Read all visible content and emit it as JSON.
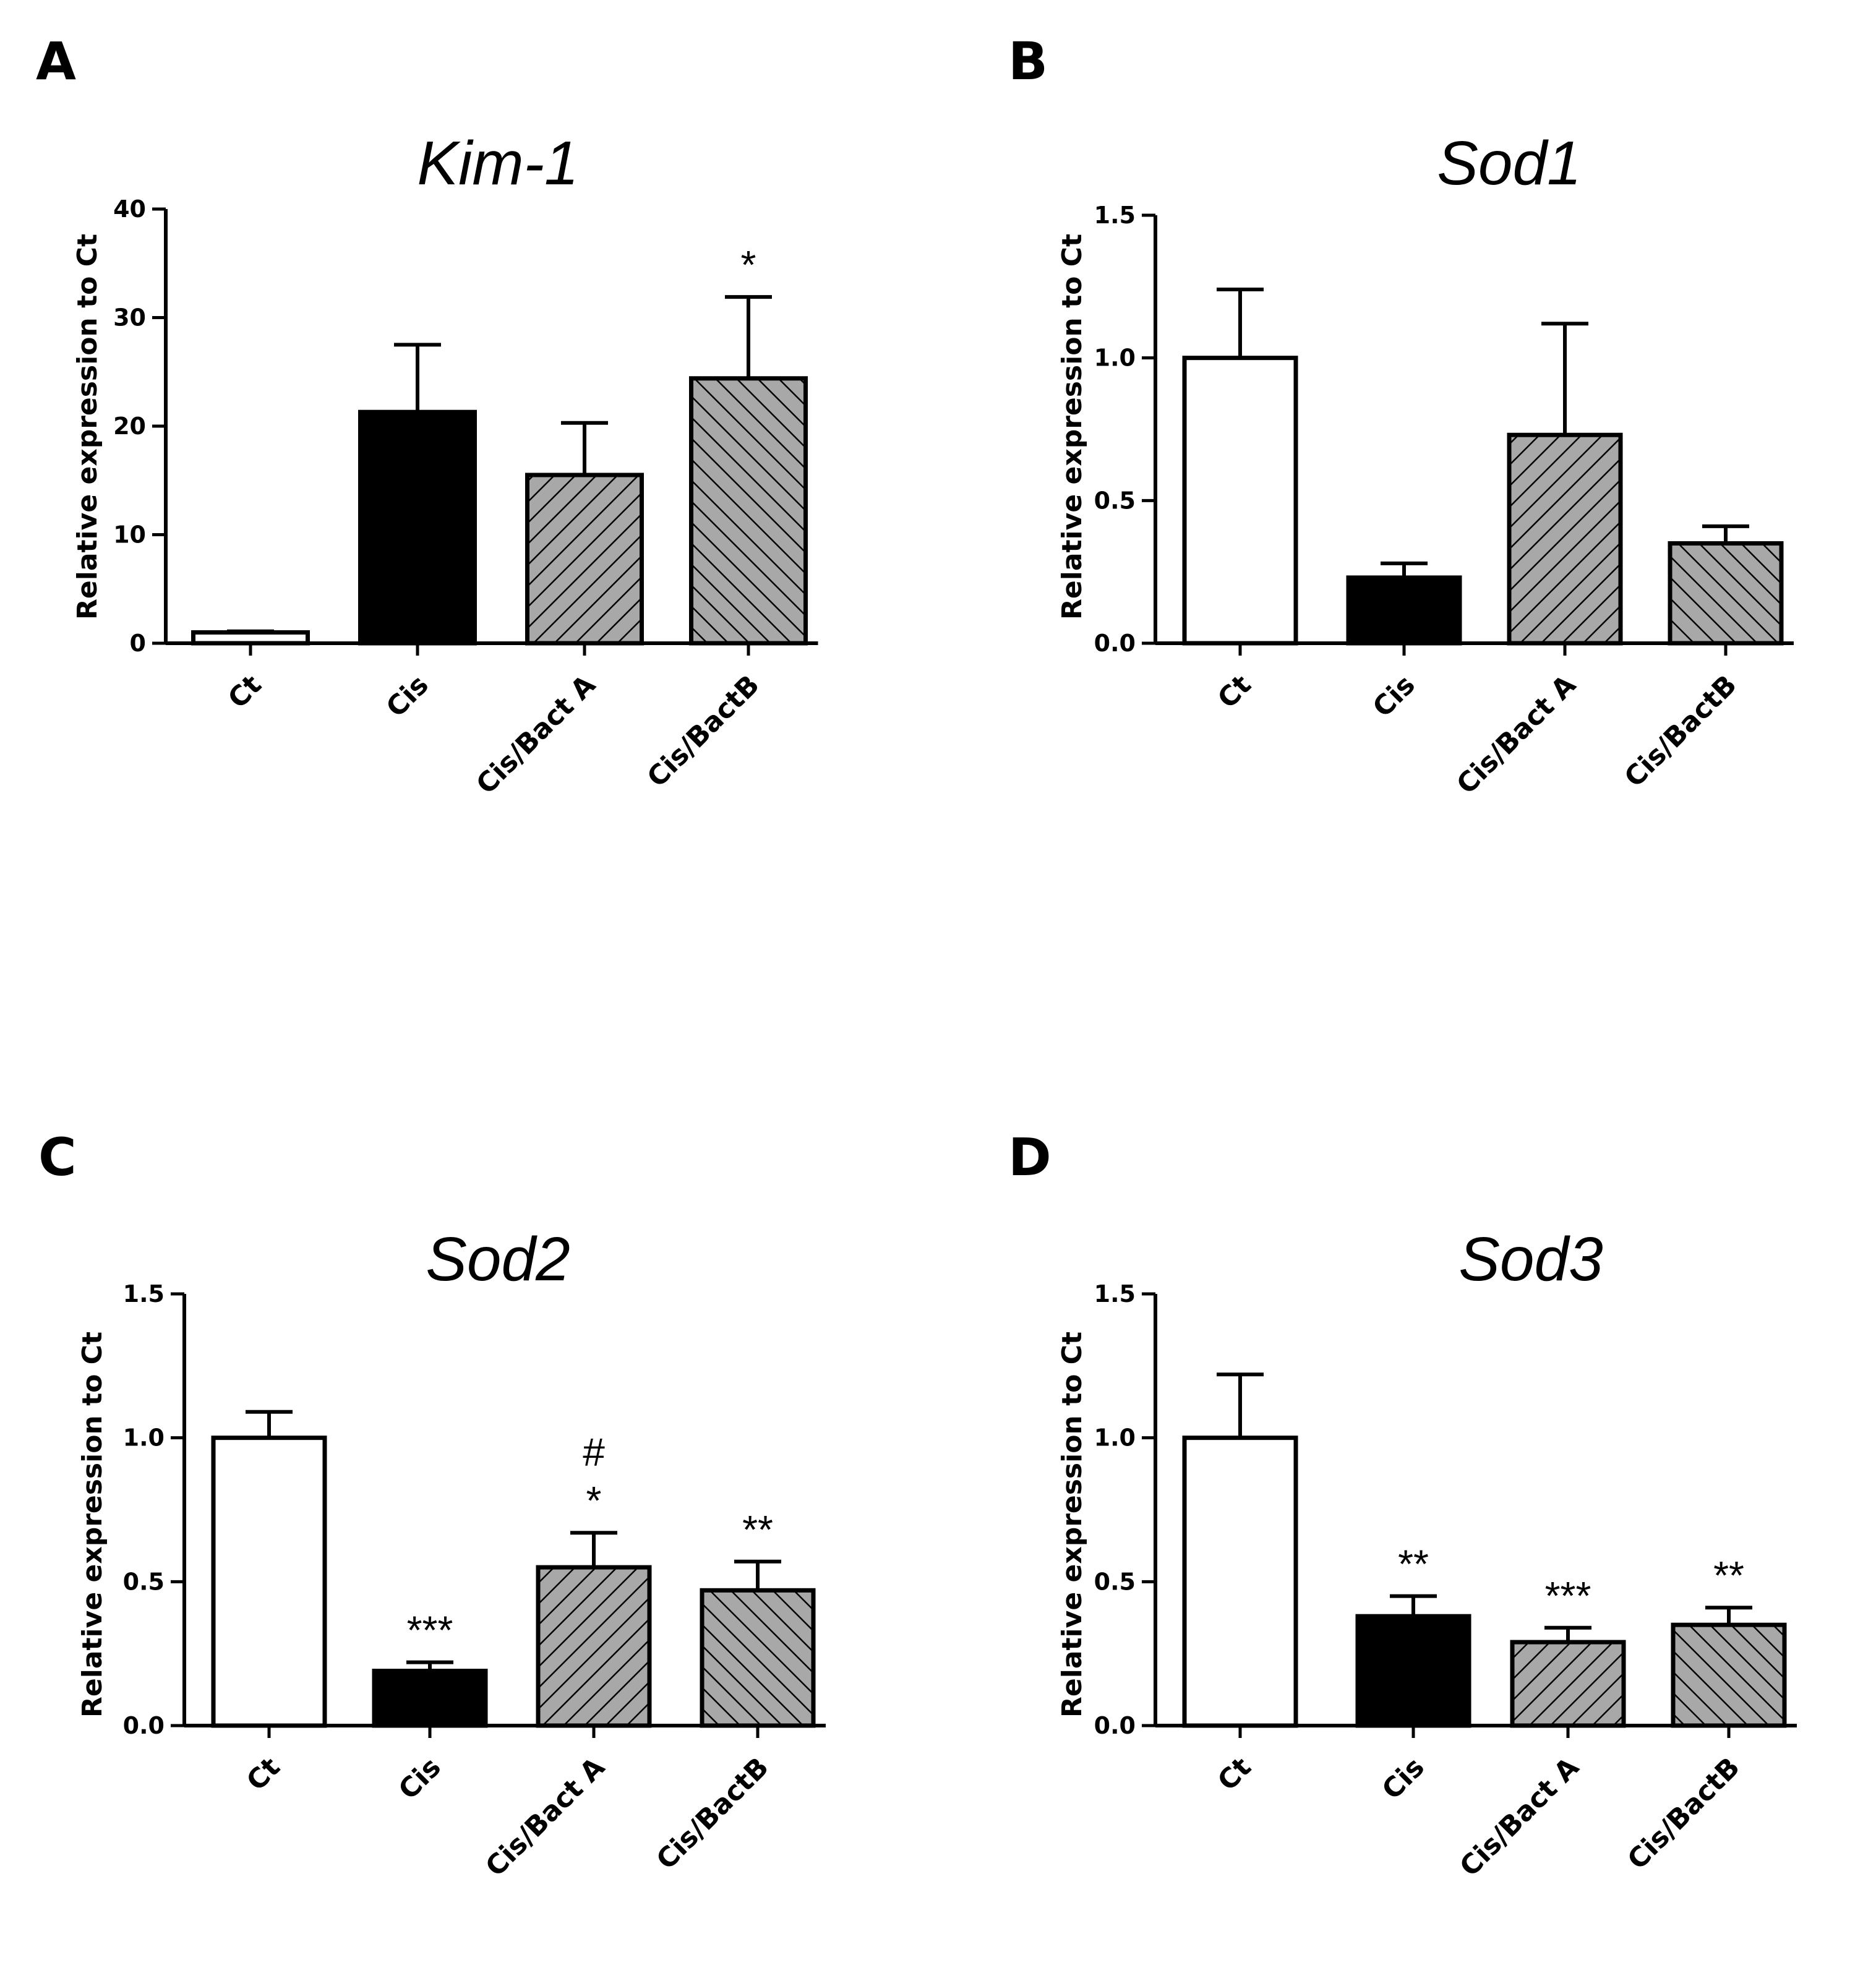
{
  "colors": {
    "ink": "#000000",
    "open": "#ffffff",
    "solid": "#000000",
    "hatched": "#a8a8a8"
  },
  "chart_data": [
    {
      "panel": "A",
      "type": "bar",
      "title": "Kim-1",
      "ylabel": "Relative expression to Ct",
      "xlabel": "",
      "ylim": [
        0,
        40
      ],
      "yticks": [
        0,
        10,
        20,
        30,
        40
      ],
      "ytick_labels": [
        "0",
        "10",
        "20",
        "30",
        "40"
      ],
      "categories": [
        "Ct",
        "Cis",
        "Cis/Bact A",
        "Cis/BactB"
      ],
      "values": [
        1.0,
        21.3,
        15.5,
        24.4
      ],
      "errors": [
        0.1,
        6.2,
        4.8,
        7.5
      ],
      "fills": [
        "open",
        "solid",
        "hatch-right",
        "hatch-left"
      ],
      "annotations": [
        [],
        [],
        [],
        [
          "*"
        ]
      ]
    },
    {
      "panel": "B",
      "type": "bar",
      "title": "Sod1",
      "ylabel": "Relative expression to Ct",
      "xlabel": "",
      "ylim": [
        0,
        1.5
      ],
      "yticks": [
        0,
        0.5,
        1.0,
        1.5
      ],
      "ytick_labels": [
        "0.0",
        "0.5",
        "1.0",
        "1.5"
      ],
      "categories": [
        "Ct",
        "Cis",
        "Cis/Bact A",
        "Cis/BactB"
      ],
      "values": [
        1.0,
        0.23,
        0.73,
        0.35
      ],
      "errors": [
        0.24,
        0.05,
        0.39,
        0.06
      ],
      "fills": [
        "open",
        "solid",
        "hatch-right",
        "hatch-left"
      ],
      "annotations": [
        [],
        [],
        [],
        []
      ]
    },
    {
      "panel": "C",
      "type": "bar",
      "title": "Sod2",
      "ylabel": "Relative expression to Ct",
      "xlabel": "",
      "ylim": [
        0,
        1.5
      ],
      "yticks": [
        0,
        0.5,
        1.0,
        1.5
      ],
      "ytick_labels": [
        "0.0",
        "0.5",
        "1.0",
        "1.5"
      ],
      "categories": [
        "Ct",
        "Cis",
        "Cis/Bact A",
        "Cis/BactB"
      ],
      "values": [
        1.0,
        0.19,
        0.55,
        0.47
      ],
      "errors": [
        0.09,
        0.03,
        0.12,
        0.1
      ],
      "fills": [
        "open",
        "solid",
        "hatch-right",
        "hatch-left"
      ],
      "annotations": [
        [],
        [
          "***"
        ],
        [
          "#",
          "*"
        ],
        [
          "**"
        ]
      ]
    },
    {
      "panel": "D",
      "type": "bar",
      "title": "Sod3",
      "ylabel": "Relative expression to Ct",
      "xlabel": "",
      "ylim": [
        0,
        1.5
      ],
      "yticks": [
        0,
        0.5,
        1.0,
        1.5
      ],
      "ytick_labels": [
        "0.0",
        "0.5",
        "1.0",
        "1.5"
      ],
      "categories": [
        "Ct",
        "Cis",
        "Cis/Bact A",
        "Cis/BactB"
      ],
      "values": [
        1.0,
        0.38,
        0.29,
        0.35
      ],
      "errors": [
        0.22,
        0.07,
        0.05,
        0.06
      ],
      "fills": [
        "open",
        "solid",
        "hatch-right",
        "hatch-left"
      ],
      "annotations": [
        [],
        [
          "**"
        ],
        [
          "***"
        ],
        [
          "**"
        ]
      ]
    }
  ]
}
